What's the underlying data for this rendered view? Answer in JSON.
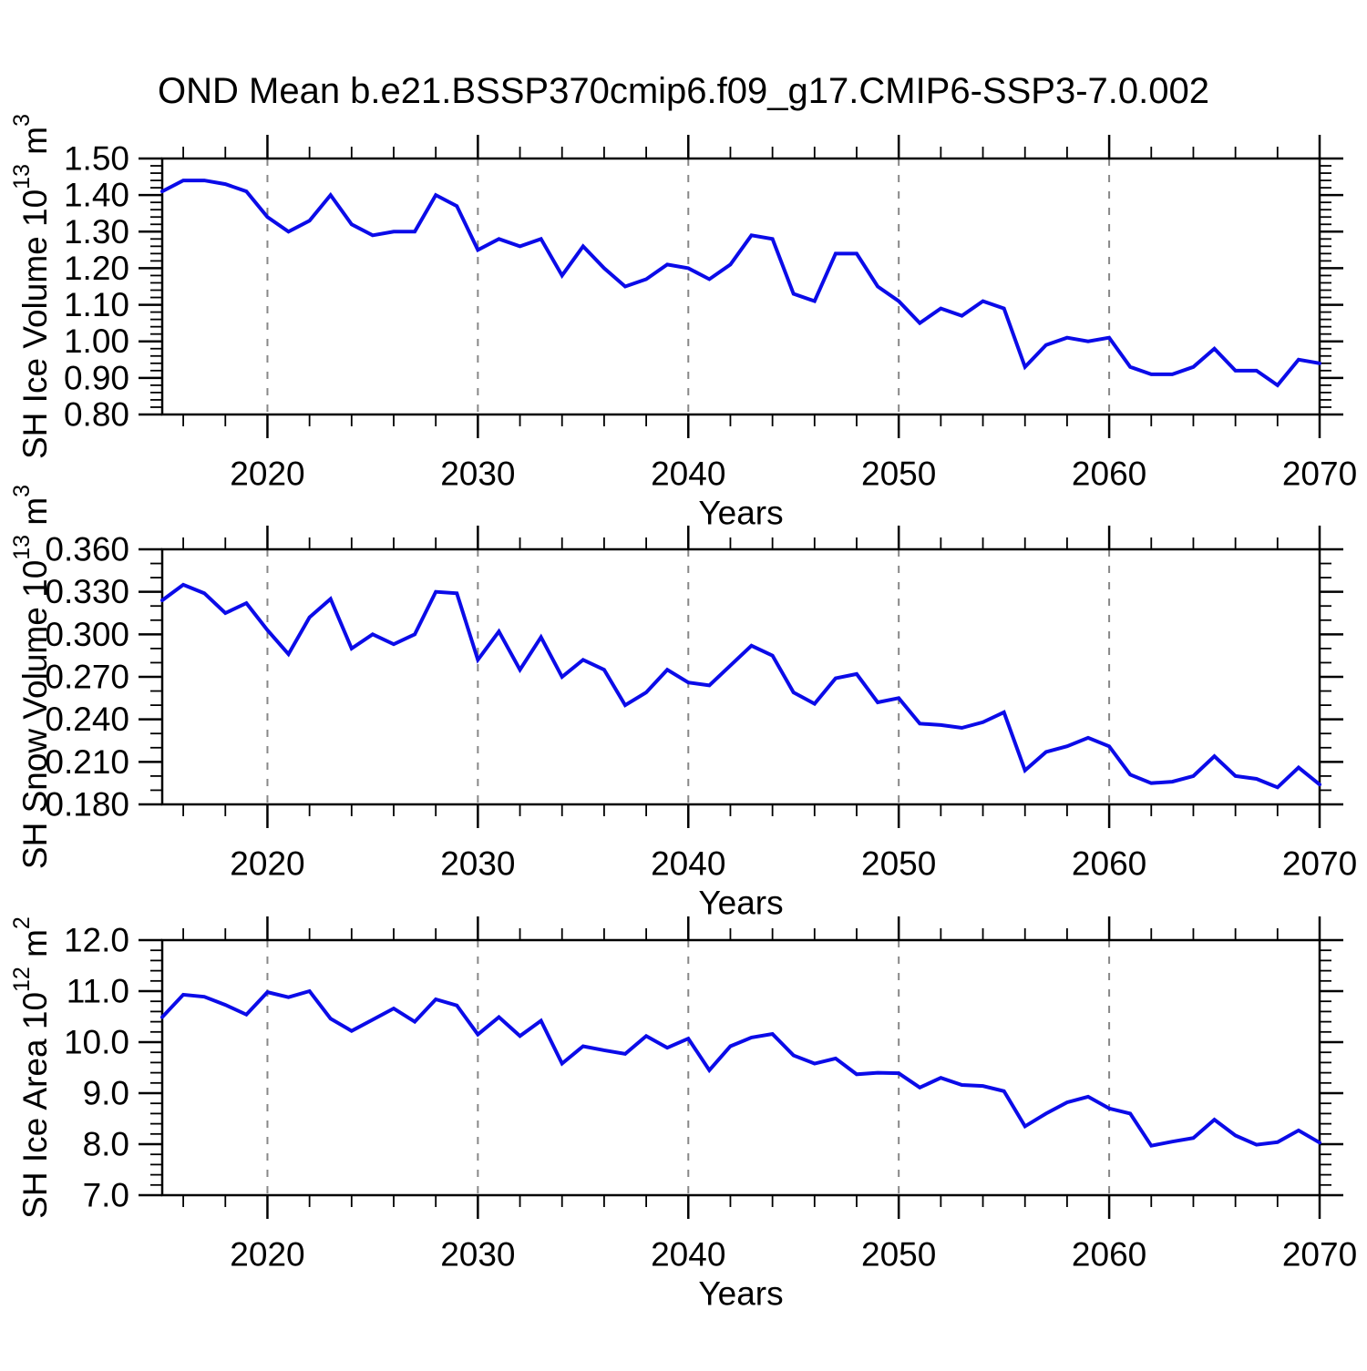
{
  "title": "OND Mean b.e21.BSSP370cmip6.f09_g17.CMIP6-SSP3-7.0.002",
  "xlabel": "Years",
  "colors": {
    "line": "#0b0be8",
    "grid": "#888888",
    "axis": "#000000"
  },
  "x_axis": {
    "start_year": 2015,
    "end_year": 2070,
    "major_ticks": [
      2020,
      2030,
      2040,
      2050,
      2060,
      2070
    ],
    "minor_step_years": 2,
    "gridline_years": [
      2020,
      2030,
      2040,
      2050,
      2060
    ]
  },
  "years": [
    2015,
    2016,
    2017,
    2018,
    2019,
    2020,
    2021,
    2022,
    2023,
    2024,
    2025,
    2026,
    2027,
    2028,
    2029,
    2030,
    2031,
    2032,
    2033,
    2034,
    2035,
    2036,
    2037,
    2038,
    2039,
    2040,
    2041,
    2042,
    2043,
    2044,
    2045,
    2046,
    2047,
    2048,
    2049,
    2050,
    2051,
    2052,
    2053,
    2054,
    2055,
    2056,
    2057,
    2058,
    2059,
    2060,
    2061,
    2062,
    2063,
    2064,
    2065,
    2066,
    2067,
    2068,
    2069,
    2070
  ],
  "chart_data": [
    {
      "type": "line",
      "name": "sh-ice-volume",
      "ylabel_text": "SH Ice Volume 10^13 m^3",
      "ylabel_parts": [
        {
          "text": "SH Ice Volume 10"
        },
        {
          "text": "13",
          "sup": true
        },
        {
          "text": " m"
        },
        {
          "text": "3",
          "sup": true
        }
      ],
      "ylim": [
        0.8,
        1.5
      ],
      "ytick_values": [
        0.8,
        0.9,
        1.0,
        1.1,
        1.2,
        1.3,
        1.4,
        1.5
      ],
      "ytick_labels": [
        "0.80",
        "0.90",
        "1.00",
        "1.10",
        "1.20",
        "1.30",
        "1.40",
        "1.50"
      ],
      "y_minor_step": 0.02,
      "xlabel": "Years",
      "values": [
        1.41,
        1.44,
        1.44,
        1.43,
        1.41,
        1.34,
        1.3,
        1.33,
        1.4,
        1.32,
        1.29,
        1.3,
        1.3,
        1.4,
        1.37,
        1.25,
        1.28,
        1.26,
        1.28,
        1.18,
        1.26,
        1.2,
        1.15,
        1.17,
        1.21,
        1.2,
        1.17,
        1.21,
        1.29,
        1.28,
        1.13,
        1.11,
        1.24,
        1.24,
        1.15,
        1.11,
        1.05,
        1.09,
        1.07,
        1.11,
        1.09,
        0.93,
        0.99,
        1.01,
        1.0,
        1.01,
        0.93,
        0.91,
        0.91,
        0.93,
        0.98,
        0.92,
        0.92,
        0.88,
        0.95,
        0.94
      ]
    },
    {
      "type": "line",
      "name": "sh-snow-volume",
      "ylabel_text": "SH Snow Volume 10^13 m^3",
      "ylabel_parts": [
        {
          "text": "SH Snow Volume 10"
        },
        {
          "text": "13",
          "sup": true
        },
        {
          "text": " m"
        },
        {
          "text": "3",
          "sup": true
        }
      ],
      "ylim": [
        0.18,
        0.36
      ],
      "ytick_values": [
        0.18,
        0.21,
        0.24,
        0.27,
        0.3,
        0.33,
        0.36
      ],
      "ytick_labels": [
        "0.180",
        "0.210",
        "0.240",
        "0.270",
        "0.300",
        "0.330",
        "0.360"
      ],
      "y_minor_step": 0.01,
      "xlabel": "Years",
      "values": [
        0.324,
        0.335,
        0.329,
        0.315,
        0.322,
        0.303,
        0.286,
        0.312,
        0.325,
        0.29,
        0.3,
        0.293,
        0.3,
        0.33,
        0.329,
        0.282,
        0.302,
        0.275,
        0.298,
        0.27,
        0.282,
        0.275,
        0.25,
        0.259,
        0.275,
        0.266,
        0.264,
        0.278,
        0.292,
        0.285,
        0.259,
        0.251,
        0.269,
        0.272,
        0.252,
        0.255,
        0.237,
        0.236,
        0.234,
        0.238,
        0.245,
        0.204,
        0.217,
        0.221,
        0.227,
        0.221,
        0.201,
        0.195,
        0.196,
        0.2,
        0.214,
        0.2,
        0.198,
        0.192,
        0.206,
        0.194
      ]
    },
    {
      "type": "line",
      "name": "sh-ice-area",
      "ylabel_text": "SH Ice Area 10^12 m^2",
      "ylabel_parts": [
        {
          "text": "SH Ice Area 10"
        },
        {
          "text": "12",
          "sup": true
        },
        {
          "text": " m"
        },
        {
          "text": "2",
          "sup": true
        }
      ],
      "ylim": [
        7.0,
        12.0
      ],
      "ytick_values": [
        7.0,
        8.0,
        9.0,
        10.0,
        11.0,
        12.0
      ],
      "ytick_labels": [
        "7.0",
        "8.0",
        "9.0",
        "10.0",
        "11.0",
        "12.0"
      ],
      "y_minor_step": 0.2,
      "xlabel": "Years",
      "values": [
        10.49,
        10.93,
        10.89,
        10.73,
        10.54,
        10.98,
        10.88,
        11.0,
        10.46,
        10.22,
        10.44,
        10.66,
        10.4,
        10.84,
        10.72,
        10.15,
        10.49,
        10.12,
        10.42,
        9.58,
        9.92,
        9.84,
        9.77,
        10.12,
        9.89,
        10.07,
        9.45,
        9.92,
        10.09,
        10.16,
        9.74,
        9.58,
        9.68,
        9.37,
        9.4,
        9.39,
        9.11,
        9.3,
        9.16,
        9.14,
        9.04,
        8.35,
        8.6,
        8.82,
        8.93,
        8.7,
        8.6,
        7.97,
        8.05,
        8.12,
        8.48,
        8.17,
        7.99,
        8.04,
        8.27,
        8.03
      ]
    }
  ]
}
